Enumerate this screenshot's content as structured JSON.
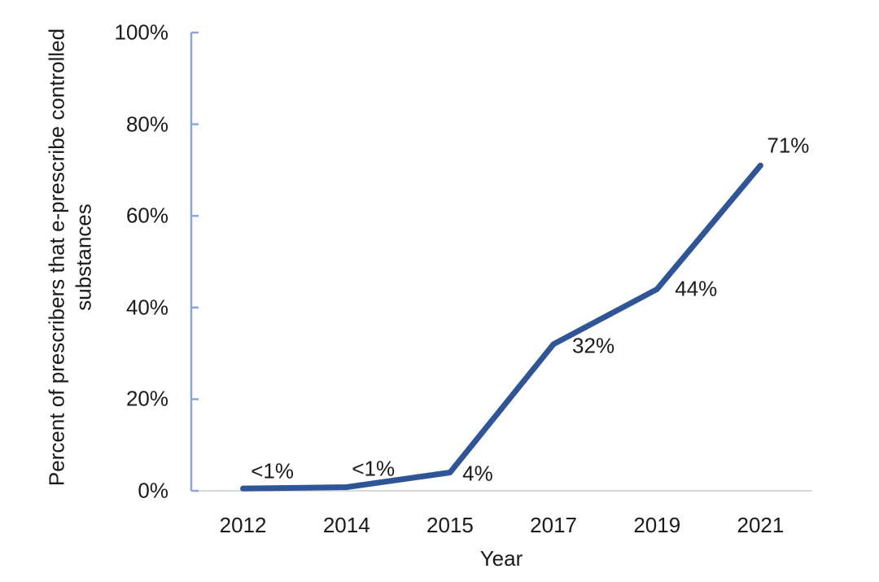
{
  "chart_data": {
    "type": "line",
    "title": "",
    "xlabel": "Year",
    "ylabel": "Percent of prescribers that e-prescribe controlled substances",
    "ylabel_lines": [
      "Percent of prescribers that e-prescribe controlled",
      "substances"
    ],
    "categories": [
      "2012",
      "2014",
      "2015",
      "2017",
      "2019",
      "2021"
    ],
    "series": [
      {
        "name": "Percent of prescribers that e-prescribe controlled substances",
        "values": [
          0.5,
          0.8,
          4,
          32,
          44,
          71
        ]
      }
    ],
    "point_labels": [
      "<1%",
      "<1%",
      "4%",
      "32%",
      "44%",
      "71%"
    ],
    "ytick_labels": [
      "100%",
      "80%",
      "60%",
      "40%",
      "20%",
      "0%"
    ],
    "ytick_values": [
      100,
      80,
      60,
      40,
      20,
      0
    ],
    "ylim": [
      0,
      100
    ],
    "grid": false,
    "legend": "none",
    "colors": {
      "line": "#2F5597",
      "y_axis": "#8AA5DC",
      "x_axis": "#D9D9D9",
      "text": "#1A1A1A"
    }
  }
}
